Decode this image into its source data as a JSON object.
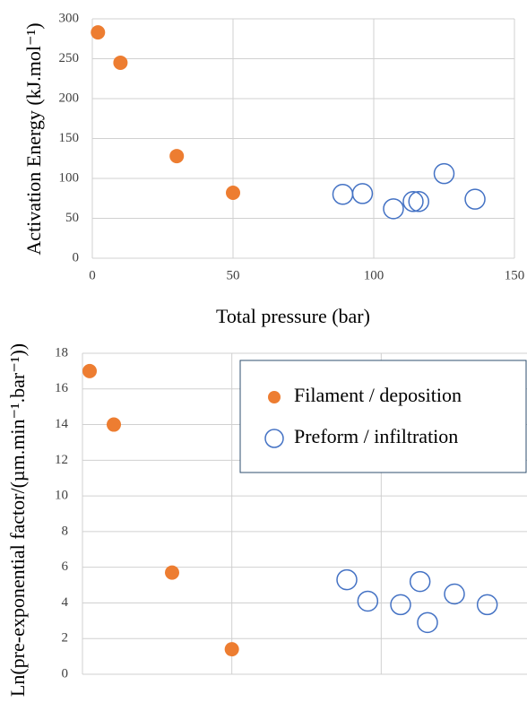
{
  "chart_data": [
    {
      "type": "scatter",
      "ylabel": "Activation Energy (kJ.mol⁻¹)",
      "xlabel": "Total pressure (bar)",
      "xlim": [
        0,
        150
      ],
      "xticks": [
        0,
        50,
        100,
        150
      ],
      "ylim": [
        0,
        300
      ],
      "yticks": [
        0,
        50,
        100,
        150,
        200,
        250,
        300
      ],
      "grid": true,
      "series": [
        {
          "color": "#ed7d31",
          "filled": true,
          "x": [
            2,
            10,
            30,
            50
          ],
          "values": [
            283,
            245,
            128,
            82
          ]
        },
        {
          "color": "#4472c4",
          "filled": false,
          "x": [
            89,
            96,
            107,
            114,
            116,
            125,
            136
          ],
          "values": [
            80,
            81,
            62,
            71,
            71,
            106,
            74
          ]
        }
      ]
    },
    {
      "type": "scatter",
      "ylabel": "Ln(pre-exponential factor/(µm.min⁻¹.bar⁻¹))",
      "xlim": [
        0,
        150
      ],
      "xticks": [
        0,
        50,
        100,
        150
      ],
      "ylim": [
        0,
        18
      ],
      "yticks": [
        0,
        2,
        4,
        6,
        8,
        10,
        12,
        14,
        16,
        18
      ],
      "grid": true,
      "legend": "upper right",
      "series": [
        {
          "name": "Filament / deposition",
          "color": "#ed7d31",
          "filled": true,
          "x": [
            2.4,
            10.5,
            30,
            50
          ],
          "values": [
            17,
            14,
            5.7,
            1.4
          ]
        },
        {
          "name": "Preform / infiltration",
          "color": "#4472c4",
          "filled": false,
          "x": [
            88.5,
            95.5,
            106.5,
            113,
            115.5,
            124.5,
            135.5
          ],
          "values": [
            5.3,
            4.1,
            3.9,
            5.2,
            2.9,
            4.5,
            3.9
          ]
        }
      ]
    }
  ]
}
